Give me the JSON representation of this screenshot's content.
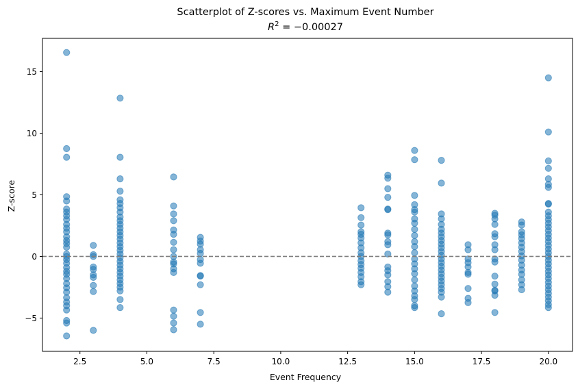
{
  "chart_data": {
    "type": "scatter",
    "title": "Scatterplot of Z-scores vs. Maximum Event Number",
    "subtitle": "R² = −0.00027",
    "subtitle_parts": {
      "base": "R",
      "sup": "2",
      "rest": " = −0.00027"
    },
    "xlabel": "Event Frequency",
    "ylabel": "Z-score",
    "xlim": [
      1.1,
      20.9
    ],
    "ylim": [
      -7.7,
      17.7
    ],
    "xticks": [
      2.5,
      5.0,
      7.5,
      10.0,
      12.5,
      15.0,
      17.5,
      20.0
    ],
    "xtick_labels": [
      "2.5",
      "5.0",
      "7.5",
      "10.0",
      "12.5",
      "15.0",
      "17.5",
      "20.0"
    ],
    "yticks": [
      -5,
      0,
      5,
      10,
      15
    ],
    "ytick_labels": [
      "−5",
      "0",
      "5",
      "10",
      "15"
    ],
    "reference_line": {
      "y": 0,
      "style": "dashed",
      "color": "#7f7f7f"
    },
    "grid": false,
    "legend": "none",
    "marker_color": "#1f77b4",
    "marker_alpha": 0.55,
    "series": [
      {
        "points": [
          [
            2,
            16.55
          ],
          [
            2,
            8.75
          ],
          [
            2,
            8.05
          ],
          [
            2,
            4.85
          ],
          [
            2,
            4.5
          ],
          [
            2,
            3.85
          ],
          [
            2,
            3.6
          ],
          [
            2,
            3.3
          ],
          [
            2,
            3.0
          ],
          [
            2,
            2.6
          ],
          [
            2,
            2.3
          ],
          [
            2,
            2.0
          ],
          [
            2,
            1.6
          ],
          [
            2,
            1.3
          ],
          [
            2,
            1.05
          ],
          [
            2,
            0.75
          ],
          [
            2,
            0.2
          ],
          [
            2,
            0.0
          ],
          [
            2,
            -0.25
          ],
          [
            2,
            -0.55
          ],
          [
            2,
            -0.9
          ],
          [
            2,
            -1.2
          ],
          [
            2,
            -1.45
          ],
          [
            2,
            -1.8
          ],
          [
            2,
            -2.2
          ],
          [
            2,
            -2.55
          ],
          [
            2,
            -2.9
          ],
          [
            2,
            -3.35
          ],
          [
            2,
            -3.7
          ],
          [
            2,
            -4.0
          ],
          [
            2,
            -4.35
          ],
          [
            2,
            -5.2
          ],
          [
            2,
            -5.4
          ],
          [
            2,
            -6.45
          ],
          [
            3,
            0.9
          ],
          [
            3,
            0.15
          ],
          [
            3,
            0.0
          ],
          [
            3,
            -0.85
          ],
          [
            3,
            -1.05
          ],
          [
            3,
            -1.5
          ],
          [
            3,
            -1.7
          ],
          [
            3,
            -2.35
          ],
          [
            3,
            -2.85
          ],
          [
            3,
            -6.0
          ],
          [
            4,
            12.85
          ],
          [
            4,
            8.05
          ],
          [
            4,
            6.3
          ],
          [
            4,
            5.3
          ],
          [
            4,
            4.6
          ],
          [
            4,
            4.3
          ],
          [
            4,
            3.95
          ],
          [
            4,
            3.6
          ],
          [
            4,
            3.2
          ],
          [
            4,
            2.9
          ],
          [
            4,
            2.6
          ],
          [
            4,
            2.3
          ],
          [
            4,
            2.0
          ],
          [
            4,
            1.7
          ],
          [
            4,
            1.4
          ],
          [
            4,
            1.1
          ],
          [
            4,
            0.8
          ],
          [
            4,
            0.5
          ],
          [
            4,
            0.2
          ],
          [
            4,
            -0.1
          ],
          [
            4,
            -0.4
          ],
          [
            4,
            -0.7
          ],
          [
            4,
            -1.0
          ],
          [
            4,
            -1.3
          ],
          [
            4,
            -1.6
          ],
          [
            4,
            -1.9
          ],
          [
            4,
            -2.2
          ],
          [
            4,
            -2.5
          ],
          [
            4,
            -2.8
          ],
          [
            4,
            -3.5
          ],
          [
            4,
            -4.15
          ],
          [
            6,
            6.45
          ],
          [
            6,
            4.1
          ],
          [
            6,
            3.45
          ],
          [
            6,
            2.9
          ],
          [
            6,
            2.15
          ],
          [
            6,
            1.8
          ],
          [
            6,
            1.15
          ],
          [
            6,
            0.55
          ],
          [
            6,
            0.0
          ],
          [
            6,
            -0.45
          ],
          [
            6,
            -0.6
          ],
          [
            6,
            -1.0
          ],
          [
            6,
            -1.3
          ],
          [
            6,
            -4.35
          ],
          [
            6,
            -4.85
          ],
          [
            6,
            -5.4
          ],
          [
            6,
            -5.95
          ],
          [
            7,
            1.55
          ],
          [
            7,
            1.25
          ],
          [
            7,
            1.0
          ],
          [
            7,
            0.55
          ],
          [
            7,
            0.25
          ],
          [
            7,
            -0.25
          ],
          [
            7,
            -0.55
          ],
          [
            7,
            -1.55
          ],
          [
            7,
            -1.6
          ],
          [
            7,
            -2.3
          ],
          [
            7,
            -4.55
          ],
          [
            7,
            -5.5
          ],
          [
            13,
            3.95
          ],
          [
            13,
            3.15
          ],
          [
            13,
            2.55
          ],
          [
            13,
            2.0
          ],
          [
            13,
            1.8
          ],
          [
            13,
            1.5
          ],
          [
            13,
            1.1
          ],
          [
            13,
            0.7
          ],
          [
            13,
            0.3
          ],
          [
            13,
            0.0
          ],
          [
            13,
            -0.35
          ],
          [
            13,
            -0.65
          ],
          [
            13,
            -0.95
          ],
          [
            13,
            -1.3
          ],
          [
            13,
            -1.65
          ],
          [
            13,
            -2.05
          ],
          [
            13,
            -2.3
          ],
          [
            14,
            6.6
          ],
          [
            14,
            6.35
          ],
          [
            14,
            5.5
          ],
          [
            14,
            4.8
          ],
          [
            14,
            3.85
          ],
          [
            14,
            3.8
          ],
          [
            14,
            1.9
          ],
          [
            14,
            1.75
          ],
          [
            14,
            1.2
          ],
          [
            14,
            0.95
          ],
          [
            14,
            0.2
          ],
          [
            14,
            -0.85
          ],
          [
            14,
            -1.15
          ],
          [
            14,
            -1.5
          ],
          [
            14,
            -2.05
          ],
          [
            14,
            -2.45
          ],
          [
            14,
            -2.9
          ],
          [
            15,
            8.6
          ],
          [
            15,
            7.85
          ],
          [
            15,
            4.95
          ],
          [
            15,
            4.2
          ],
          [
            15,
            3.8
          ],
          [
            15,
            3.6
          ],
          [
            15,
            3.05
          ],
          [
            15,
            2.7
          ],
          [
            15,
            2.2
          ],
          [
            15,
            1.7
          ],
          [
            15,
            1.2
          ],
          [
            15,
            0.8
          ],
          [
            15,
            0.3
          ],
          [
            15,
            -0.2
          ],
          [
            15,
            -0.6
          ],
          [
            15,
            -1.0
          ],
          [
            15,
            -1.4
          ],
          [
            15,
            -1.9
          ],
          [
            15,
            -2.4
          ],
          [
            15,
            -2.8
          ],
          [
            15,
            -3.2
          ],
          [
            15,
            -3.5
          ],
          [
            15,
            -4.0
          ],
          [
            15,
            -4.15
          ],
          [
            16,
            7.8
          ],
          [
            16,
            5.95
          ],
          [
            16,
            3.45
          ],
          [
            16,
            3.05
          ],
          [
            16,
            2.6
          ],
          [
            16,
            2.2
          ],
          [
            16,
            1.9
          ],
          [
            16,
            1.6
          ],
          [
            16,
            1.3
          ],
          [
            16,
            1.0
          ],
          [
            16,
            0.7
          ],
          [
            16,
            0.4
          ],
          [
            16,
            0.1
          ],
          [
            16,
            -0.2
          ],
          [
            16,
            -0.5
          ],
          [
            16,
            -0.8
          ],
          [
            16,
            -1.1
          ],
          [
            16,
            -1.4
          ],
          [
            16,
            -1.7
          ],
          [
            16,
            -2.0
          ],
          [
            16,
            -2.3
          ],
          [
            16,
            -2.6
          ],
          [
            16,
            -2.9
          ],
          [
            16,
            -3.3
          ],
          [
            16,
            -4.65
          ],
          [
            17,
            0.95
          ],
          [
            17,
            0.55
          ],
          [
            17,
            -0.2
          ],
          [
            17,
            -0.5
          ],
          [
            17,
            -0.85
          ],
          [
            17,
            -1.3
          ],
          [
            17,
            -1.45
          ],
          [
            17,
            -2.6
          ],
          [
            17,
            -3.4
          ],
          [
            17,
            -3.75
          ],
          [
            18,
            3.5
          ],
          [
            18,
            3.35
          ],
          [
            18,
            3.05
          ],
          [
            18,
            2.6
          ],
          [
            18,
            1.85
          ],
          [
            18,
            1.6
          ],
          [
            18,
            0.95
          ],
          [
            18,
            0.55
          ],
          [
            18,
            -0.2
          ],
          [
            18,
            -0.45
          ],
          [
            18,
            -1.6
          ],
          [
            18,
            -2.25
          ],
          [
            18,
            -2.75
          ],
          [
            18,
            -2.8
          ],
          [
            18,
            -3.15
          ],
          [
            18,
            -4.55
          ],
          [
            19,
            2.8
          ],
          [
            19,
            2.55
          ],
          [
            19,
            2.0
          ],
          [
            19,
            1.75
          ],
          [
            19,
            1.45
          ],
          [
            19,
            1.1
          ],
          [
            19,
            0.75
          ],
          [
            19,
            0.4
          ],
          [
            19,
            0.05
          ],
          [
            19,
            -0.3
          ],
          [
            19,
            -0.7
          ],
          [
            19,
            -1.1
          ],
          [
            19,
            -1.45
          ],
          [
            19,
            -1.9
          ],
          [
            19,
            -2.3
          ],
          [
            19,
            -2.7
          ],
          [
            20,
            14.5
          ],
          [
            20,
            10.1
          ],
          [
            20,
            7.75
          ],
          [
            20,
            7.15
          ],
          [
            20,
            6.3
          ],
          [
            20,
            5.85
          ],
          [
            20,
            5.6
          ],
          [
            20,
            4.3
          ],
          [
            20,
            4.25
          ],
          [
            20,
            3.6
          ],
          [
            20,
            3.3
          ],
          [
            20,
            3.0
          ],
          [
            20,
            2.7
          ],
          [
            20,
            2.4
          ],
          [
            20,
            2.1
          ],
          [
            20,
            1.8
          ],
          [
            20,
            1.5
          ],
          [
            20,
            1.2
          ],
          [
            20,
            0.9
          ],
          [
            20,
            0.6
          ],
          [
            20,
            0.3
          ],
          [
            20,
            0.0
          ],
          [
            20,
            -0.3
          ],
          [
            20,
            -0.6
          ],
          [
            20,
            -0.9
          ],
          [
            20,
            -1.2
          ],
          [
            20,
            -1.5
          ],
          [
            20,
            -1.8
          ],
          [
            20,
            -2.1
          ],
          [
            20,
            -2.4
          ],
          [
            20,
            -2.7
          ],
          [
            20,
            -3.0
          ],
          [
            20,
            -3.3
          ],
          [
            20,
            -3.6
          ],
          [
            20,
            -3.9
          ],
          [
            20,
            -4.15
          ]
        ]
      }
    ]
  }
}
